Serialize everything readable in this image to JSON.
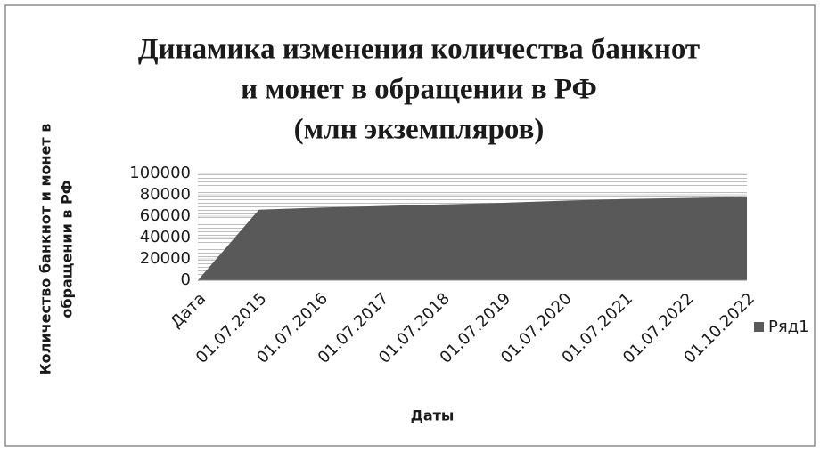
{
  "chart_data": {
    "type": "area",
    "title": [
      "Динамика изменения количества банкнот",
      "и монет в обращении в РФ",
      "(млн экземпляров)"
    ],
    "x_label": "Даты",
    "y_label": [
      "Количество банкнот и монет в",
      "обращении в РФ"
    ],
    "categories": [
      "Дата",
      "01.07.2015",
      "01.07.2016",
      "01.07.2017",
      "01.07.2018",
      "01.07.2019",
      "01.07.2020",
      "01.07.2021",
      "01.07.2022",
      "01.10.2022"
    ],
    "series": [
      {
        "name": "Ряд1",
        "color": "#595959",
        "values": [
          0,
          66000,
          68000,
          69500,
          71000,
          72500,
          74500,
          76000,
          77000,
          78000
        ]
      }
    ],
    "ylim": [
      0,
      100000
    ],
    "yticks": [
      0,
      20000,
      40000,
      60000,
      80000,
      100000
    ],
    "grid": true,
    "legend": "right"
  }
}
